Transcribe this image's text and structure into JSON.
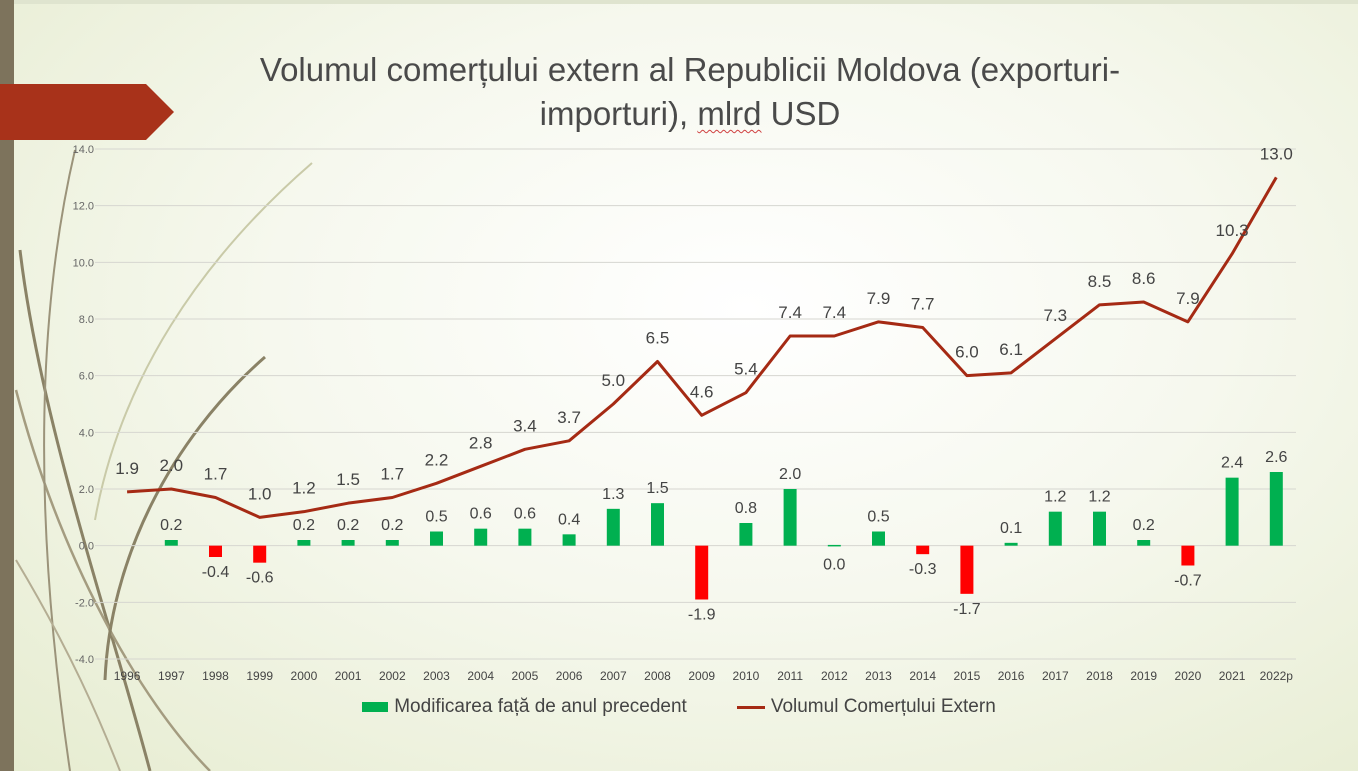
{
  "title_line1": "Volumul comerțului extern al Republicii Moldova (exporturi-",
  "title_line2_a": "importuri), ",
  "title_line2_b": "mlrd",
  "title_line2_c": " USD",
  "colors": {
    "bar_positive": "#00b050",
    "bar_negative": "#ff0000",
    "line": "#a52a14",
    "ribbon": "#a8321a",
    "accent_bar": "#7d735c"
  },
  "chart_data": {
    "type": "bar+line",
    "categories": [
      "1996",
      "1997",
      "1998",
      "1999",
      "2000",
      "2001",
      "2002",
      "2003",
      "2004",
      "2005",
      "2006",
      "2007",
      "2008",
      "2009",
      "2010",
      "2011",
      "2012",
      "2013",
      "2014",
      "2015",
      "2016",
      "2017",
      "2018",
      "2019",
      "2020",
      "2021",
      "2022p"
    ],
    "series": [
      {
        "name": "Modificarea față de anul precedent",
        "type": "bar",
        "values": [
          null,
          0.2,
          -0.4,
          -0.6,
          0.2,
          0.2,
          0.2,
          0.5,
          0.6,
          0.6,
          0.4,
          1.3,
          1.5,
          -1.9,
          0.8,
          2.0,
          0.0,
          0.5,
          -0.3,
          -1.7,
          0.1,
          1.2,
          1.2,
          0.2,
          -0.7,
          2.4,
          2.6
        ],
        "labels": [
          "",
          "0.2",
          "-0.4",
          "-0.6",
          "0.2",
          "0.2",
          "0.2",
          "0.5",
          "0.6",
          "0.6",
          "0.4",
          "1.3",
          "1.5",
          "-1.9",
          "0.8",
          "2.0",
          "0.0",
          "0.5",
          "-0.3",
          "-1.7",
          "0.1",
          "1.2",
          "1.2",
          "0.2",
          "-0.7",
          "2.4",
          "2.6"
        ]
      },
      {
        "name": "Volumul Comerțului Extern",
        "type": "line",
        "values": [
          1.9,
          2.0,
          1.7,
          1.0,
          1.2,
          1.5,
          1.7,
          2.2,
          2.8,
          3.4,
          3.7,
          5.0,
          6.5,
          4.6,
          5.4,
          7.4,
          7.4,
          7.9,
          7.7,
          6.0,
          6.1,
          7.3,
          8.5,
          8.6,
          7.9,
          10.3,
          13.0
        ],
        "labels": [
          "1.9",
          "2.0",
          "1.7",
          "1.0",
          "1.2",
          "1.5",
          "1.7",
          "2.2",
          "2.8",
          "3.4",
          "3.7",
          "5.0",
          "6.5",
          "4.6",
          "5.4",
          "7.4",
          "7.4",
          "7.9",
          "7.7",
          "6.0",
          "6.1",
          "7.3",
          "8.5",
          "8.6",
          "7.9",
          "10.3",
          "13.0"
        ]
      }
    ],
    "yticks": [
      "14.0",
      "12.0",
      "10.0",
      "8.0",
      "6.0",
      "4.0",
      "2.0",
      "0.0",
      "-2.0",
      "-4.0"
    ],
    "ylim": [
      -4,
      14
    ],
    "grid": true,
    "legend_position": "bottom"
  }
}
